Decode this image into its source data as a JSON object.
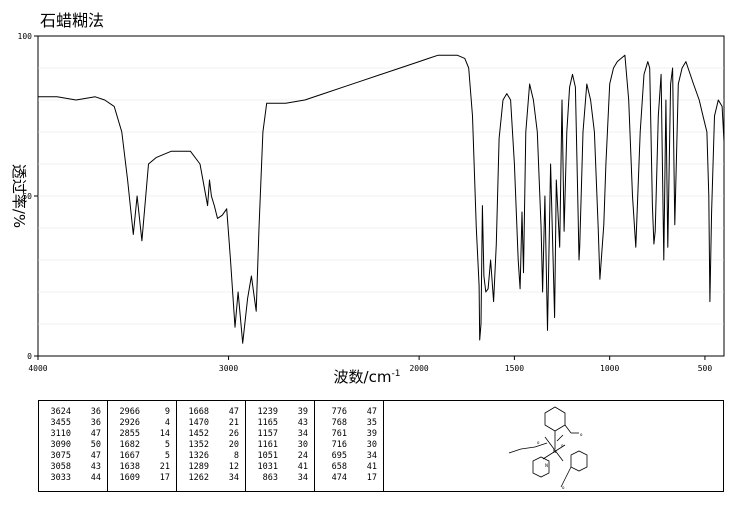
{
  "title": "石蜡糊法",
  "chart_data": {
    "type": "line",
    "title": "石蜡糊法",
    "xlabel": "波数/cm",
    "xlabel_sup": "-1",
    "ylabel": "透过率/%",
    "xlim": [
      4000,
      400
    ],
    "ylim": [
      0,
      100
    ],
    "x_ticks": [
      4000,
      3000,
      2000,
      1500,
      1000,
      500
    ],
    "y_ticks": [
      0,
      50,
      100
    ],
    "x_tick_labels": [
      "4000",
      "3000",
      "2000",
      "1500",
      "1000",
      "500"
    ],
    "y_tick_labels": [
      "0",
      "50",
      "100"
    ],
    "series": [
      {
        "x": [
          4000,
          3900,
          3800,
          3700,
          3650,
          3600,
          3560,
          3530,
          3500,
          3480,
          3455,
          3420,
          3380,
          3300,
          3200,
          3150,
          3110,
          3100,
          3090,
          3075,
          3058,
          3033,
          3010,
          2990,
          2966,
          2950,
          2926,
          2900,
          2880,
          2855,
          2840,
          2820,
          2800,
          2700,
          2600,
          2500,
          2400,
          2300,
          2200,
          2100,
          2000,
          1950,
          1900,
          1850,
          1800,
          1760,
          1740,
          1720,
          1700,
          1685,
          1682,
          1675,
          1668,
          1660,
          1650,
          1638,
          1625,
          1609,
          1595,
          1580,
          1560,
          1540,
          1520,
          1500,
          1480,
          1470,
          1460,
          1452,
          1440,
          1420,
          1400,
          1380,
          1360,
          1352,
          1340,
          1326,
          1310,
          1289,
          1280,
          1262,
          1250,
          1239,
          1225,
          1210,
          1195,
          1180,
          1165,
          1161,
          1157,
          1140,
          1120,
          1100,
          1080,
          1060,
          1051,
          1031,
          1020,
          1000,
          980,
          960,
          940,
          920,
          900,
          880,
          863,
          840,
          820,
          800,
          790,
          776,
          768,
          761,
          745,
          730,
          716,
          705,
          695,
          680,
          670,
          658,
          640,
          620,
          600,
          560,
          530,
          510,
          490,
          480,
          474,
          465,
          450,
          430,
          410,
          400
        ],
        "y": [
          81,
          81,
          80,
          81,
          80,
          78,
          70,
          55,
          38,
          50,
          36,
          60,
          62,
          64,
          64,
          60,
          47,
          55,
          50,
          47,
          43,
          44,
          46,
          30,
          9,
          20,
          4,
          18,
          25,
          14,
          40,
          70,
          79,
          79,
          80,
          82,
          84,
          86,
          88,
          90,
          92,
          93,
          94,
          94,
          94,
          93,
          90,
          75,
          40,
          22,
          5,
          10,
          47,
          25,
          20,
          21,
          30,
          17,
          35,
          68,
          80,
          82,
          80,
          60,
          30,
          21,
          45,
          26,
          70,
          85,
          80,
          70,
          40,
          20,
          50,
          8,
          60,
          12,
          55,
          34,
          80,
          39,
          70,
          84,
          88,
          84,
          43,
          30,
          34,
          70,
          85,
          80,
          70,
          40,
          24,
          41,
          60,
          85,
          90,
          92,
          93,
          94,
          80,
          50,
          34,
          70,
          88,
          92,
          90,
          47,
          35,
          39,
          75,
          88,
          30,
          80,
          34,
          85,
          90,
          41,
          85,
          90,
          92,
          85,
          80,
          75,
          70,
          50,
          17,
          45,
          75,
          80,
          78,
          67
        ]
      }
    ]
  },
  "peak_table": [
    [
      [
        "3624",
        "36"
      ],
      [
        "3455",
        "36"
      ],
      [
        "3110",
        "47"
      ],
      [
        "3090",
        "50"
      ],
      [
        "3075",
        "47"
      ],
      [
        "3058",
        "43"
      ],
      [
        "3033",
        "44"
      ]
    ],
    [
      [
        "2966",
        "9"
      ],
      [
        "2926",
        "4"
      ],
      [
        "2855",
        "14"
      ],
      [
        "1682",
        "5"
      ],
      [
        "1667",
        "5"
      ],
      [
        "1638",
        "21"
      ],
      [
        "1609",
        "17"
      ]
    ],
    [
      [
        "1668",
        "47"
      ],
      [
        "1470",
        "21"
      ],
      [
        "1452",
        "26"
      ],
      [
        "1352",
        "20"
      ],
      [
        "1326",
        "8"
      ],
      [
        "1289",
        "12"
      ],
      [
        "1262",
        "34"
      ]
    ],
    [
      [
        "1239",
        "39"
      ],
      [
        "1165",
        "43"
      ],
      [
        "1157",
        "34"
      ],
      [
        "1161",
        "30"
      ],
      [
        "1051",
        "24"
      ],
      [
        "1031",
        "41"
      ],
      [
        "863",
        "34"
      ]
    ],
    [
      [
        "776",
        "47"
      ],
      [
        "768",
        "35"
      ],
      [
        "761",
        "39"
      ],
      [
        "716",
        "30"
      ],
      [
        "695",
        "34"
      ],
      [
        "658",
        "41"
      ],
      [
        "474",
        "17"
      ]
    ]
  ]
}
